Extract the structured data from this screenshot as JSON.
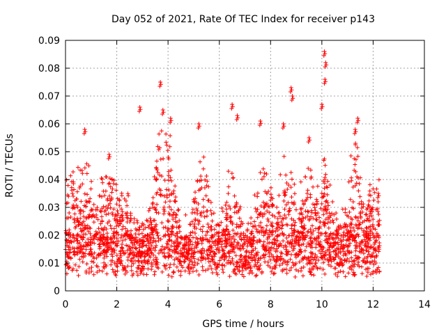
{
  "chart_data": {
    "type": "scatter",
    "title": "Day 052 of 2021, Rate Of TEC Index for receiver p143",
    "xlabel": "GPS time / hours",
    "ylabel": "ROTI / TECUs",
    "xlim": [
      0,
      14
    ],
    "ylim": [
      0,
      0.09
    ],
    "grid": true,
    "marker": "+",
    "color": "#ff0000",
    "x_ticks": [
      0,
      2,
      4,
      6,
      8,
      10,
      12,
      14
    ],
    "x_tick_labels": [
      "0",
      "2",
      "4",
      "6",
      "8",
      "10",
      "12",
      "14"
    ],
    "y_ticks": [
      0,
      0.01,
      0.02,
      0.03,
      0.04,
      0.05,
      0.06,
      0.07,
      0.08,
      0.09
    ],
    "y_tick_labels": [
      "0",
      "0.01",
      "0.02",
      "0.03",
      "0.04",
      "0.05",
      "0.06",
      "0.07",
      "0.08",
      "0.09"
    ],
    "series": [
      {
        "name": "ROTI",
        "x_range_hours": [
          0,
          12.25
        ],
        "baseline_values": [
          0.005,
          0.02
        ],
        "notable_points": [
          {
            "x": 0.75,
            "y": 0.058
          },
          {
            "x": 2.9,
            "y": 0.066
          },
          {
            "x": 3.7,
            "y": 0.075
          },
          {
            "x": 3.8,
            "y": 0.065
          },
          {
            "x": 5.2,
            "y": 0.06
          },
          {
            "x": 6.5,
            "y": 0.067
          },
          {
            "x": 6.7,
            "y": 0.063
          },
          {
            "x": 7.6,
            "y": 0.061
          },
          {
            "x": 8.5,
            "y": 0.06
          },
          {
            "x": 8.8,
            "y": 0.073
          },
          {
            "x": 8.85,
            "y": 0.07
          },
          {
            "x": 10.1,
            "y": 0.086
          },
          {
            "x": 10.15,
            "y": 0.082
          },
          {
            "x": 10.12,
            "y": 0.076
          },
          {
            "x": 10.0,
            "y": 0.067
          },
          {
            "x": 11.4,
            "y": 0.062
          },
          {
            "x": 11.3,
            "y": 0.058
          },
          {
            "x": 1.7,
            "y": 0.049
          },
          {
            "x": 4.1,
            "y": 0.062
          },
          {
            "x": 9.5,
            "y": 0.055
          },
          {
            "x": 12.2,
            "y": 0.035
          }
        ]
      }
    ]
  }
}
